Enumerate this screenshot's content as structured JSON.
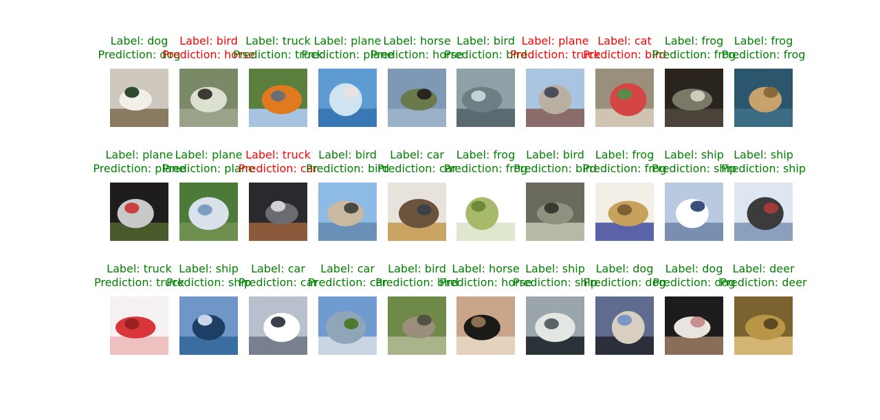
{
  "figure": {
    "columns": 10,
    "rows": 3,
    "colors": {
      "correct": "#008000",
      "incorrect": "#ff0000"
    },
    "cells": [
      {
        "label": "Label: dog",
        "prediction": "Prediction: dog",
        "correct": true,
        "image": "puppy face close-up"
      },
      {
        "label": "Label: bird",
        "prediction": "Prediction: horse",
        "correct": false,
        "image": "small bird on branch"
      },
      {
        "label": "Label: truck",
        "prediction": "Prediction: truck",
        "correct": true,
        "image": "orange truck on road"
      },
      {
        "label": "Label: plane",
        "prediction": "Prediction: plane",
        "correct": true,
        "image": "jet in blue sky"
      },
      {
        "label": "Label: horse",
        "prediction": "Prediction: horse",
        "correct": true,
        "image": "dark horse standing"
      },
      {
        "label": "Label: bird",
        "prediction": "Prediction: bird",
        "correct": true,
        "image": "grey bird"
      },
      {
        "label": "Label: plane",
        "prediction": "Prediction: truck",
        "correct": false,
        "image": "plane on ground with people"
      },
      {
        "label": "Label: cat",
        "prediction": "Prediction: bird",
        "correct": false,
        "image": "cat with red flowers"
      },
      {
        "label": "Label: frog",
        "prediction": "Prediction: frog",
        "correct": true,
        "image": "spotted frog"
      },
      {
        "label": "Label: frog",
        "prediction": "Prediction: frog",
        "correct": true,
        "image": "brown frog on blue"
      },
      {
        "label": "Label: plane",
        "prediction": "Prediction: plane",
        "correct": true,
        "image": "red plane on grass"
      },
      {
        "label": "Label: plane",
        "prediction": "Prediction: plane",
        "correct": true,
        "image": "white jet on grass"
      },
      {
        "label": "Label: truck",
        "prediction": "Prediction: car",
        "correct": false,
        "image": "black truck"
      },
      {
        "label": "Label: bird",
        "prediction": "Prediction: bird",
        "correct": true,
        "image": "ostrich head sky"
      },
      {
        "label": "Label: car",
        "prediction": "Prediction: car",
        "correct": true,
        "image": "vintage car"
      },
      {
        "label": "Label: frog",
        "prediction": "Prediction: frog",
        "correct": true,
        "image": "green frog white background"
      },
      {
        "label": "Label: bird",
        "prediction": "Prediction: bird",
        "correct": true,
        "image": "bird on branch"
      },
      {
        "label": "Label: frog",
        "prediction": "Prediction: frog",
        "correct": true,
        "image": "frog illustration with text"
      },
      {
        "label": "Label: ship",
        "prediction": "Prediction: ship",
        "correct": true,
        "image": "white cruise ship"
      },
      {
        "label": "Label: ship",
        "prediction": "Prediction: ship",
        "correct": true,
        "image": "cargo ship"
      },
      {
        "label": "Label: truck",
        "prediction": "Prediction: truck",
        "correct": true,
        "image": "red fire truck"
      },
      {
        "label": "Label: ship",
        "prediction": "Prediction: ship",
        "correct": true,
        "image": "ship in harbor"
      },
      {
        "label": "Label: car",
        "prediction": "Prediction: car",
        "correct": true,
        "image": "white police car"
      },
      {
        "label": "Label: car",
        "prediction": "Prediction: car",
        "correct": true,
        "image": "silver car on grass"
      },
      {
        "label": "Label: bird",
        "prediction": "Prediction: bird",
        "correct": true,
        "image": "emu on grass"
      },
      {
        "label": "Label: horse",
        "prediction": "Prediction: horse",
        "correct": true,
        "image": "black horse"
      },
      {
        "label": "Label: ship",
        "prediction": "Prediction: ship",
        "correct": true,
        "image": "ship in fog"
      },
      {
        "label": "Label: dog",
        "prediction": "Prediction: dog",
        "correct": true,
        "image": "small dog in arms"
      },
      {
        "label": "Label: dog",
        "prediction": "Prediction: dog",
        "correct": true,
        "image": "white fluffy dog"
      },
      {
        "label": "Label: deer",
        "prediction": "Prediction: deer",
        "correct": true,
        "image": "deer in brown grass"
      }
    ]
  }
}
